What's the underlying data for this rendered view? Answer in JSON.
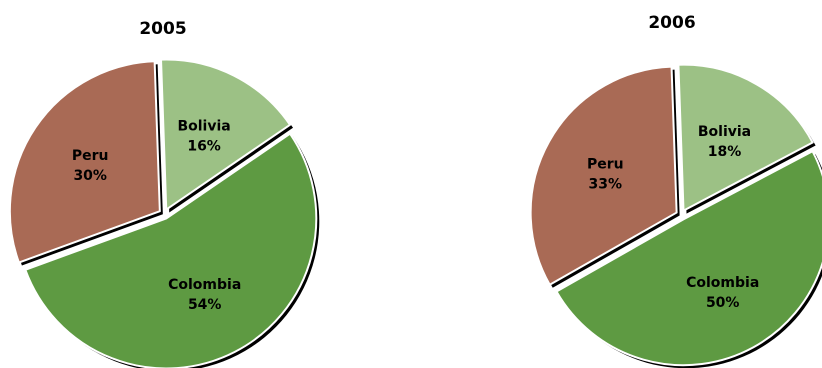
{
  "chart_data": [
    {
      "type": "pie",
      "title": "2005",
      "slices": [
        {
          "label": "Bolivia",
          "value": 16,
          "value_label": "16%",
          "color": "#9cc185"
        },
        {
          "label": "Colombia",
          "value": 54,
          "value_label": "54%",
          "color": "#5e9a42"
        },
        {
          "label": "Peru",
          "value": 30,
          "value_label": "30%",
          "color": "#a96a55"
        }
      ]
    },
    {
      "type": "pie",
      "title": "2006",
      "slices": [
        {
          "label": "Bolivia",
          "value": 18,
          "value_label": "18%",
          "color": "#9cc185"
        },
        {
          "label": "Colombia",
          "value": 50,
          "value_label": "50%",
          "color": "#5e9a42"
        },
        {
          "label": "Peru",
          "value": 33,
          "value_label": "33%",
          "color": "#a96a55"
        }
      ]
    }
  ]
}
